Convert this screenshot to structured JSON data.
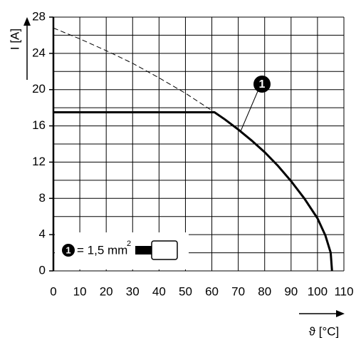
{
  "chart_data": {
    "type": "line",
    "ylabel": "I [A]",
    "xlabel": "ϑ [°C]",
    "xlim": [
      0,
      110
    ],
    "ylim": [
      0,
      28
    ],
    "xticks": [
      0,
      10,
      20,
      30,
      40,
      50,
      60,
      70,
      80,
      90,
      100,
      110
    ],
    "yticks": [
      0,
      4,
      8,
      12,
      16,
      20,
      24,
      28
    ],
    "y_minor_ticks": [
      2,
      6,
      10,
      14,
      18,
      22,
      26
    ],
    "grid": true,
    "series": [
      {
        "style": "solid",
        "color": "#000000",
        "x": [
          0,
          61,
          65,
          70,
          75,
          80,
          85,
          90,
          95,
          100,
          103,
          105,
          105.5
        ],
        "values": [
          17.5,
          17.5,
          16.7,
          15.6,
          14.4,
          13.1,
          11.6,
          9.9,
          8.0,
          5.8,
          3.9,
          2.0,
          0
        ]
      },
      {
        "style": "dashed",
        "color": "#000000",
        "x": [
          0,
          10,
          20,
          30,
          40,
          50,
          61
        ],
        "values": [
          26.8,
          25.6,
          24.3,
          22.9,
          21.3,
          19.6,
          17.5
        ]
      }
    ],
    "callout": "1",
    "legend": {
      "marker": "1",
      "text": "= 1,5 mm",
      "superscript": "2"
    }
  }
}
